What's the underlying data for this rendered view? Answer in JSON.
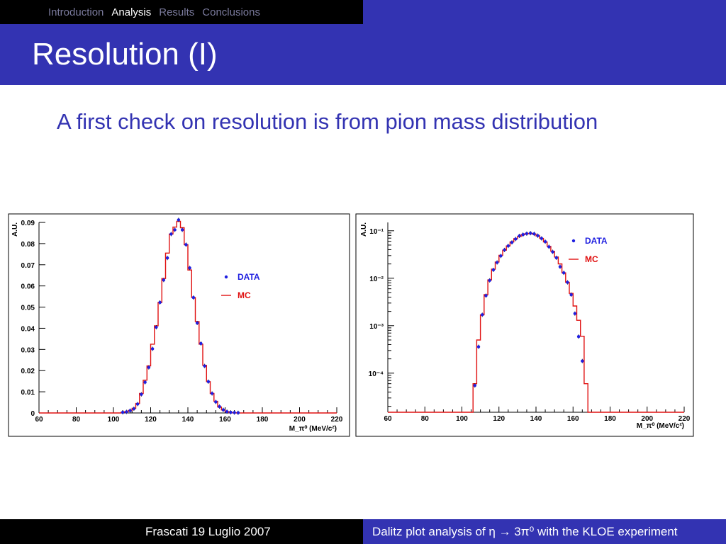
{
  "nav": {
    "items": [
      {
        "label": "Introduction",
        "active": false
      },
      {
        "label": "Analysis",
        "active": true
      },
      {
        "label": "Results",
        "active": false
      },
      {
        "label": "Conclusions",
        "active": false
      }
    ]
  },
  "header": {
    "title": "Resolution (I)"
  },
  "main": {
    "subtitle": "A first check on resolution is from pion mass distribution"
  },
  "footer": {
    "left": "Frascati 19 Luglio 2007",
    "right": "Dalitz plot analysis of η → 3π⁰ with the KLOE experiment"
  },
  "colors": {
    "header_bg": "#3333b2",
    "nav_bg": "#000000",
    "data_points": "#1f1fe0",
    "mc_line": "#e01010",
    "subtitle_text": "#3333b2"
  },
  "chart_data": [
    {
      "type": "line",
      "scale": "linear",
      "ylabel": "A.U.",
      "xlabel": "M_π⁰ (MeV/c²)",
      "xlim": [
        60,
        220
      ],
      "ylim": [
        0,
        0.09
      ],
      "xticks": [
        "60",
        "80",
        "100",
        "120",
        "140",
        "160",
        "180",
        "200",
        "220"
      ],
      "yticks": [
        "0",
        "0.01",
        "0.02",
        "0.03",
        "0.04",
        "0.05",
        "0.06",
        "0.07",
        "0.08",
        "0.09"
      ],
      "legend": [
        {
          "label": "DATA",
          "kind": "marker"
        },
        {
          "label": "MC",
          "kind": "line"
        }
      ],
      "grid": false,
      "bin_width": 2,
      "x": [
        61,
        63,
        65,
        67,
        69,
        71,
        73,
        75,
        77,
        79,
        81,
        83,
        85,
        87,
        89,
        91,
        93,
        95,
        97,
        99,
        101,
        103,
        105,
        107,
        109,
        111,
        113,
        115,
        117,
        119,
        121,
        123,
        125,
        127,
        129,
        131,
        133,
        135,
        137,
        139,
        141,
        143,
        145,
        147,
        149,
        151,
        153,
        155,
        157,
        159,
        161,
        163,
        165,
        167,
        169,
        171,
        173,
        175,
        177,
        179,
        181,
        183,
        185,
        187,
        189,
        191,
        193,
        195,
        197,
        199,
        201,
        203,
        205,
        207,
        209,
        211,
        213,
        215,
        217,
        219
      ],
      "series": [
        {
          "name": "MC",
          "values": [
            0,
            0,
            0,
            0,
            0,
            0,
            0,
            0,
            0,
            0,
            0,
            0,
            0,
            0,
            0,
            0,
            0,
            0,
            0,
            0,
            0,
            0,
            0.0003,
            0.0006,
            0.0012,
            0.0022,
            0.0045,
            0.0092,
            0.0155,
            0.0222,
            0.0325,
            0.0412,
            0.0522,
            0.0635,
            0.0755,
            0.0845,
            0.0878,
            0.0905,
            0.0875,
            0.0795,
            0.0675,
            0.0545,
            0.0432,
            0.0325,
            0.0225,
            0.0148,
            0.0092,
            0.0055,
            0.0028,
            0.0014,
            0.0006,
            0.0002,
            0.0001,
            0,
            0,
            0,
            0,
            0,
            0,
            0,
            0,
            0,
            0,
            0,
            0,
            0,
            0,
            0,
            0,
            0,
            0,
            0,
            0,
            0,
            0,
            0,
            0,
            0,
            0,
            0
          ]
        },
        {
          "name": "DATA",
          "values": [
            null,
            null,
            null,
            null,
            null,
            null,
            null,
            null,
            null,
            null,
            null,
            null,
            null,
            null,
            null,
            null,
            null,
            null,
            null,
            null,
            null,
            null,
            0.0003,
            0.0005,
            0.0011,
            0.002,
            0.0042,
            0.0088,
            0.0145,
            0.0215,
            0.0303,
            0.0405,
            0.0522,
            0.0628,
            0.0732,
            0.0845,
            0.0865,
            0.0912,
            0.0865,
            0.0795,
            0.0685,
            0.0545,
            0.0425,
            0.0328,
            0.0222,
            0.0148,
            0.0092,
            0.0052,
            0.003,
            0.0015,
            0.0006,
            0.0003,
            0.0002,
            0.0001,
            null,
            null,
            null,
            null,
            null,
            null,
            null,
            null,
            null,
            null,
            null,
            null,
            null,
            null,
            null,
            null,
            null,
            null,
            null,
            null,
            null,
            null,
            null,
            null,
            null,
            null
          ]
        }
      ]
    },
    {
      "type": "line",
      "scale": "log",
      "ylabel": "A.U.",
      "xlabel": "M_π⁰ (MeV/c²)",
      "xlim": [
        60,
        220
      ],
      "ylim": [
        1.5e-05,
        0.15
      ],
      "xticks": [
        "60",
        "80",
        "100",
        "120",
        "140",
        "160",
        "180",
        "200",
        "220"
      ],
      "yticks": [
        "10⁻⁴",
        "10⁻³",
        "10⁻²",
        "10⁻¹"
      ],
      "legend": [
        {
          "label": "DATA",
          "kind": "marker"
        },
        {
          "label": "MC",
          "kind": "line"
        }
      ],
      "grid": false,
      "bin_width": 2,
      "x": [
        61,
        63,
        65,
        67,
        69,
        71,
        73,
        75,
        77,
        79,
        81,
        83,
        85,
        87,
        89,
        91,
        93,
        95,
        97,
        99,
        101,
        103,
        105,
        107,
        109,
        111,
        113,
        115,
        117,
        119,
        121,
        123,
        125,
        127,
        129,
        131,
        133,
        135,
        137,
        139,
        141,
        143,
        145,
        147,
        149,
        151,
        153,
        155,
        157,
        159,
        161,
        163,
        165,
        167,
        169,
        171,
        173,
        175,
        177,
        179,
        181,
        183,
        185,
        187,
        189,
        191,
        193,
        195,
        197,
        199,
        201,
        203,
        205,
        207,
        209,
        211,
        213,
        215,
        217,
        219
      ],
      "series": [
        {
          "name": "MC",
          "values": [
            0,
            0,
            0,
            0,
            0,
            0,
            0,
            0,
            0,
            0,
            0,
            0,
            0,
            0,
            0,
            0,
            0,
            0,
            0,
            0,
            0,
            0,
            0,
            6e-05,
            0.0005,
            0.0017,
            0.0045,
            0.0092,
            0.0155,
            0.022,
            0.0305,
            0.039,
            0.048,
            0.058,
            0.068,
            0.076,
            0.083,
            0.087,
            0.088,
            0.085,
            0.078,
            0.069,
            0.058,
            0.047,
            0.037,
            0.028,
            0.02,
            0.013,
            0.0082,
            0.0048,
            0.0026,
            0.0013,
            0.0006,
            6e-05,
            0,
            0,
            0,
            0,
            0,
            0,
            0,
            0,
            0,
            0,
            0,
            0,
            0,
            0,
            0,
            0,
            0,
            0,
            0,
            0,
            0,
            0,
            0,
            0,
            0,
            0
          ]
        },
        {
          "name": "DATA",
          "values": [
            null,
            null,
            null,
            null,
            null,
            null,
            null,
            null,
            null,
            null,
            null,
            null,
            null,
            null,
            null,
            null,
            null,
            null,
            null,
            null,
            null,
            null,
            null,
            5.5e-05,
            0.00036,
            0.0017,
            0.0043,
            0.009,
            0.015,
            0.0215,
            0.0295,
            0.0395,
            0.048,
            0.057,
            0.067,
            0.078,
            0.083,
            0.087,
            0.089,
            0.086,
            0.079,
            0.069,
            0.059,
            0.046,
            0.036,
            0.027,
            0.0175,
            0.013,
            0.0082,
            0.0045,
            0.0018,
            0.00059,
            0.00018,
            null,
            null,
            null,
            null,
            null,
            null,
            null,
            null,
            null,
            null,
            null,
            null,
            null,
            null,
            null,
            null,
            null,
            null,
            null,
            null,
            null,
            null,
            null,
            null,
            null,
            null,
            null
          ]
        }
      ]
    }
  ]
}
